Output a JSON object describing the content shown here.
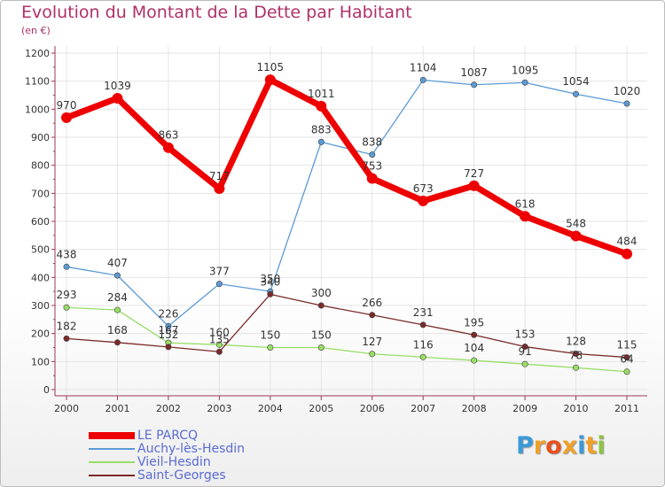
{
  "title": "Evolution du Montant de la Dette par Habitant",
  "subtitle": "(en €)",
  "logo": {
    "text": "Proxiti",
    "letter_colors": [
      "#3a9ad9",
      "#f0a02a",
      "#e8501e",
      "#f0a02a",
      "#3a9ad9",
      "#f0a02a",
      "#8bc43f"
    ]
  },
  "chart_data": {
    "type": "line",
    "title": "Evolution du Montant de la Dette par Habitant",
    "ylabel": "(en €)",
    "xlabel": "",
    "x": [
      "2000",
      "2001",
      "2002",
      "2003",
      "2004",
      "2005",
      "2006",
      "2007",
      "2008",
      "2009",
      "2010",
      "2011"
    ],
    "ylim": [
      0,
      1200
    ],
    "yticks": [
      0,
      100,
      200,
      300,
      400,
      500,
      600,
      700,
      800,
      900,
      1000,
      1100,
      1200
    ],
    "grid": true,
    "legend_position": "bottom-left",
    "series": [
      {
        "name": "LE PARCQ",
        "color": "#ee0000",
        "values": [
          970,
          1039,
          863,
          717,
          1105,
          1011,
          753,
          673,
          727,
          618,
          548,
          484
        ]
      },
      {
        "name": "Auchy-lès-Hesdin",
        "color": "#5b9bd5",
        "values": [
          438,
          407,
          226,
          377,
          350,
          883,
          838,
          1104,
          1087,
          1095,
          1054,
          1020
        ]
      },
      {
        "name": "Vieil-Hesdin",
        "color": "#99dd66",
        "values": [
          293,
          284,
          167,
          160,
          150,
          150,
          127,
          116,
          104,
          91,
          78,
          64
        ]
      },
      {
        "name": "Saint-Georges",
        "color": "#7a2a2a",
        "values": [
          182,
          168,
          152,
          135,
          340,
          300,
          266,
          231,
          195,
          153,
          128,
          115
        ]
      }
    ]
  }
}
